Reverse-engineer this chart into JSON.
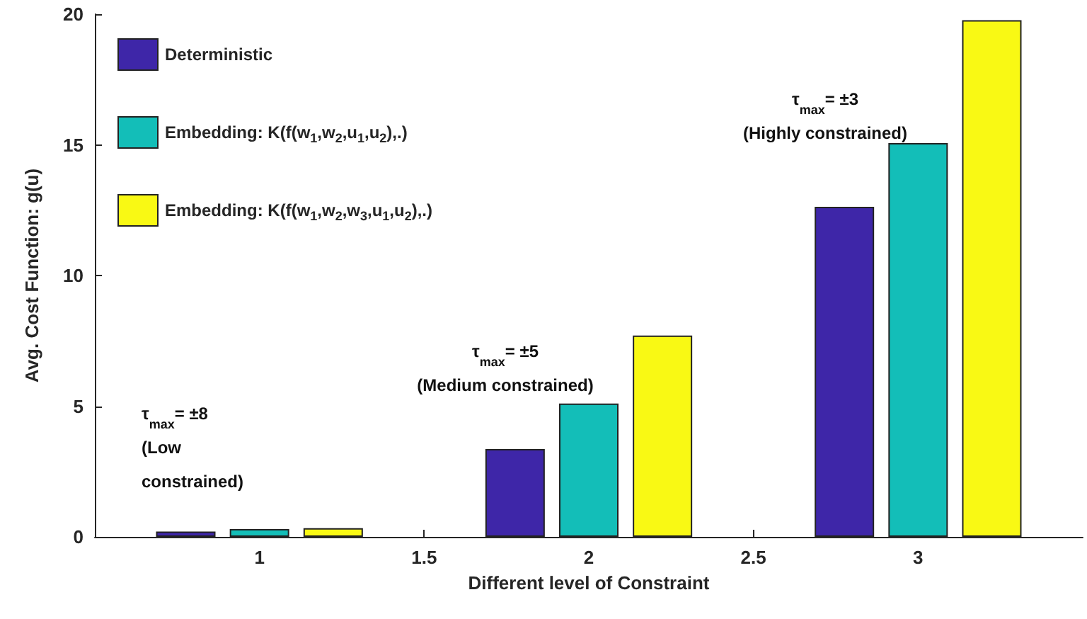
{
  "chart_data": {
    "type": "bar",
    "xlabel": "Different level of Constraint",
    "ylabel": "Avg. Cost Function: g(u)",
    "x": [
      1,
      2,
      3
    ],
    "xlim": [
      0.5,
      3.5
    ],
    "xticks": [
      1,
      1.5,
      2,
      2.5,
      3
    ],
    "ylim": [
      0,
      20
    ],
    "yticks": [
      0,
      5,
      10,
      15,
      20
    ],
    "grid": false,
    "legend": "top left",
    "series": [
      {
        "name": "Deterministic",
        "color": "#3e26a8",
        "values": [
          0.2,
          3.36,
          12.63
        ]
      },
      {
        "name": "Embedding: K(f(w$_{1}$,w$_{2}$,u$_{1}$,u$_{2}$),.)",
        "color": "#13beb8",
        "values": [
          0.3,
          5.1,
          15.07
        ]
      },
      {
        "name": "Embedding: K(f(w$_{1}$,w$_{2}$,w$_{3}$,u$_{1}$,u$_{2}$),.)",
        "color": "#f9f914",
        "values": [
          0.33,
          7.7,
          19.77
        ]
      }
    ],
    "annotations": [
      "τ$_{max}$= ±8\n(Low\nconstrained)",
      "τ$_{max}$= ±5\n(Medium constrained)",
      "τ$_{max}$= ±3\n(Highly constrained)"
    ]
  }
}
